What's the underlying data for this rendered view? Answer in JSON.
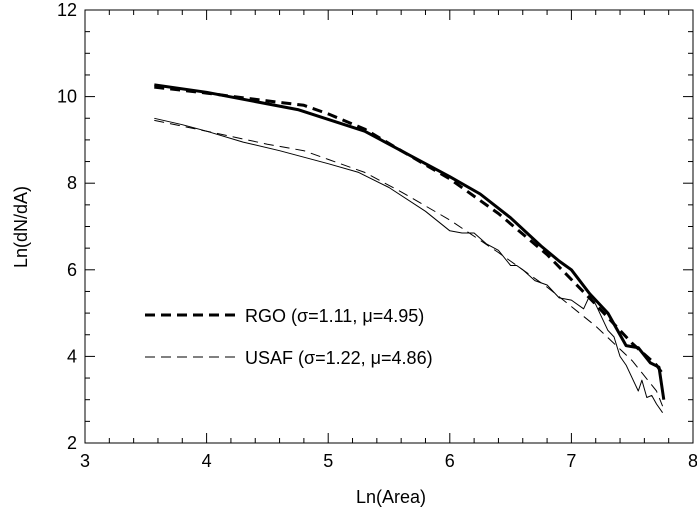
{
  "chart_data": {
    "type": "line",
    "xlabel": "Ln(Area)",
    "ylabel": "Ln(dN/dA)",
    "xlim": [
      3,
      8
    ],
    "ylim": [
      2,
      12
    ],
    "x_ticks": [
      3,
      4,
      5,
      6,
      7,
      8
    ],
    "y_ticks": [
      2,
      4,
      6,
      8,
      10,
      12
    ],
    "x_tick_labels": [
      "3",
      "4",
      "5",
      "6",
      "7",
      "8"
    ],
    "y_tick_labels": [
      "2",
      "4",
      "6",
      "8",
      "10",
      "12"
    ],
    "x_minor_step": 0.2,
    "y_minor_step": 0.5,
    "grid": false,
    "legend_placement": "lower-left",
    "series": [
      {
        "key": "rgo_data",
        "style": "thick-solid",
        "color": "#000000",
        "x": [
          3.57,
          4.0,
          4.75,
          5.3,
          5.7,
          6.0,
          6.25,
          6.5,
          6.75,
          6.9,
          7.0,
          7.15,
          7.3,
          7.45,
          7.55,
          7.65,
          7.72,
          7.76
        ],
        "y": [
          10.27,
          10.1,
          9.7,
          9.2,
          8.6,
          8.15,
          7.75,
          7.2,
          6.55,
          6.2,
          6.0,
          5.45,
          5.0,
          4.25,
          4.2,
          3.85,
          3.75,
          3.0
        ]
      },
      {
        "key": "rgo_fit",
        "style": "thick-dashed",
        "color": "#000000",
        "x": [
          3.57,
          4.0,
          4.5,
          4.8,
          5.0,
          5.3,
          5.6,
          6.0,
          6.4,
          6.8,
          7.2,
          7.5,
          7.7,
          7.75
        ],
        "y": [
          10.22,
          10.08,
          9.9,
          9.8,
          9.6,
          9.25,
          8.75,
          8.1,
          7.3,
          6.35,
          5.2,
          4.3,
          3.8,
          3.6
        ]
      },
      {
        "key": "usaf_data",
        "style": "thin-solid",
        "color": "#000000",
        "x": [
          3.57,
          3.8,
          4.0,
          4.3,
          4.6,
          5.0,
          5.25,
          5.5,
          5.8,
          6.0,
          6.1,
          6.2,
          6.3,
          6.4,
          6.5,
          6.55,
          6.6,
          6.7,
          6.8,
          6.9,
          7.0,
          7.1,
          7.15,
          7.2,
          7.25,
          7.3,
          7.35,
          7.4,
          7.45,
          7.5,
          7.55,
          7.58,
          7.62,
          7.66,
          7.7,
          7.75
        ],
        "y": [
          9.5,
          9.35,
          9.2,
          8.95,
          8.75,
          8.45,
          8.25,
          7.9,
          7.35,
          6.9,
          6.85,
          6.85,
          6.6,
          6.45,
          6.1,
          6.1,
          6.0,
          5.75,
          5.65,
          5.35,
          5.3,
          5.1,
          5.4,
          5.2,
          4.9,
          4.6,
          4.45,
          4.0,
          3.8,
          3.5,
          3.2,
          3.45,
          3.05,
          3.1,
          2.9,
          2.7
        ]
      },
      {
        "key": "usaf_fit",
        "style": "thin-dashed",
        "color": "#000000",
        "x": [
          3.57,
          4.0,
          4.5,
          4.8,
          5.0,
          5.3,
          5.6,
          6.0,
          6.4,
          6.8,
          7.2,
          7.5,
          7.7,
          7.75
        ],
        "y": [
          9.45,
          9.2,
          8.9,
          8.75,
          8.55,
          8.25,
          7.8,
          7.15,
          6.4,
          5.6,
          4.7,
          3.9,
          3.2,
          2.85
        ]
      }
    ],
    "legend": [
      {
        "label": "RGO (σ=1.11, μ=4.95)",
        "style": "thick-dashed"
      },
      {
        "label": "USAF (σ=1.22, μ=4.86)",
        "style": "thin-dashed"
      }
    ]
  }
}
